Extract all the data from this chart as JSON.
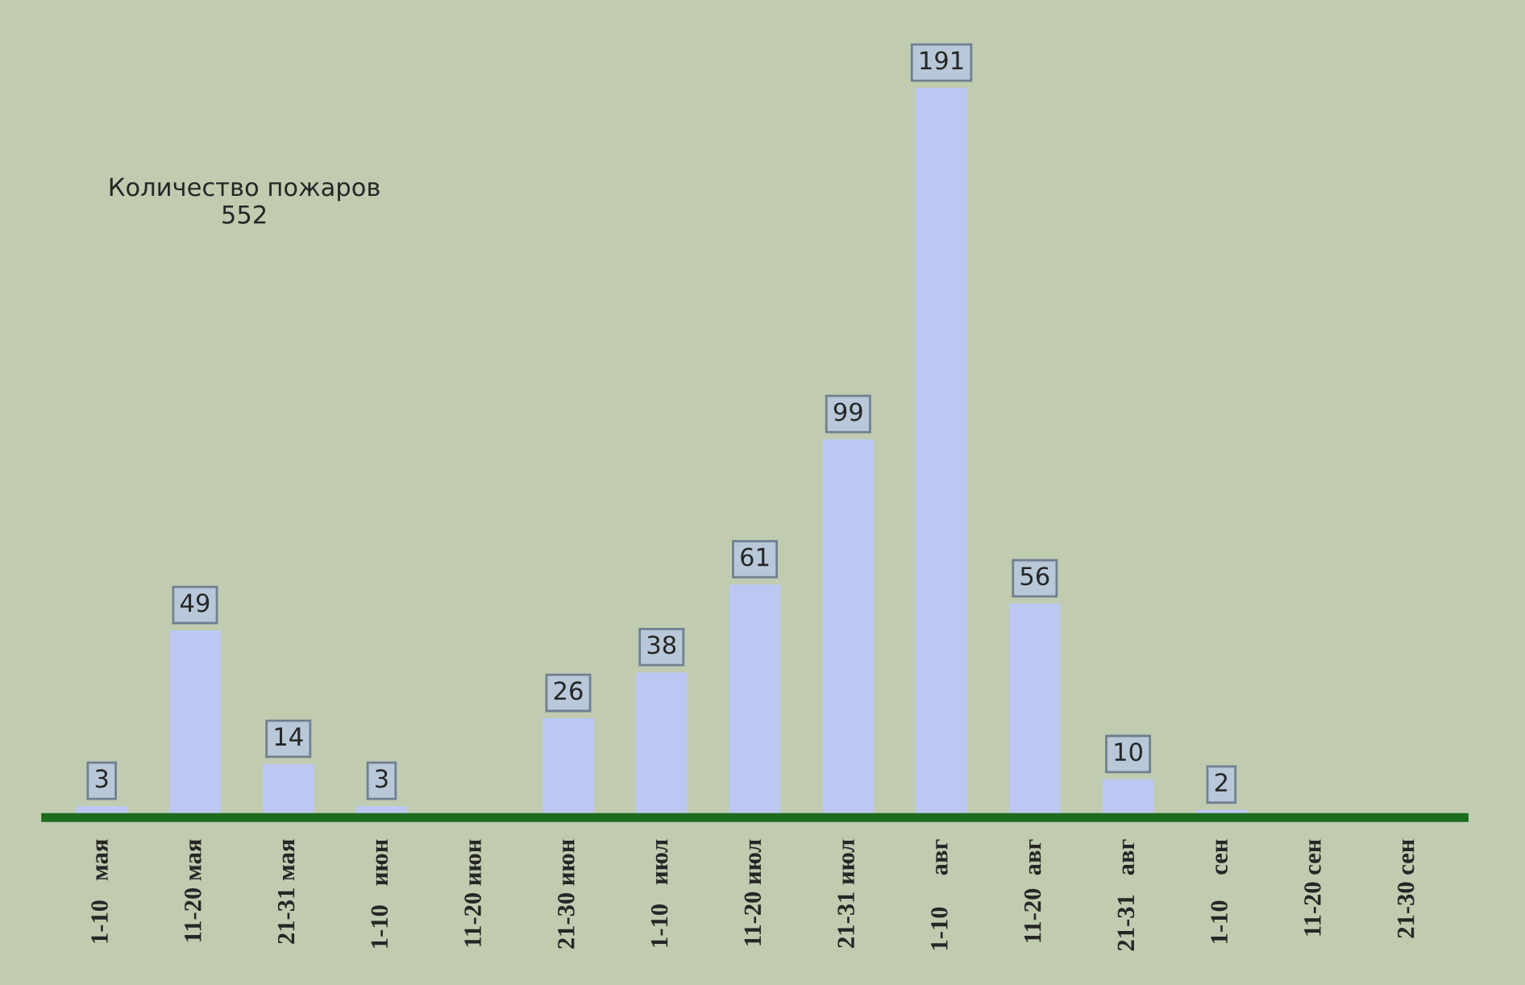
{
  "chart_data": {
    "type": "bar",
    "categories": [
      "1-10   мая",
      "11-20 мая",
      "21-31 мая",
      "1-10   июн",
      "11-20 июн",
      "21-30 июн",
      "1-10   июл",
      "11-20 июл",
      "21-31 июл",
      "1-10     авг",
      "11-20  авг",
      "21-31   авг",
      "1-10    сен",
      "11-20 сен",
      "21-30 сен"
    ],
    "values": [
      3,
      49,
      14,
      3,
      0,
      26,
      38,
      61,
      99,
      191,
      56,
      10,
      2,
      0,
      0
    ],
    "value_labels": [
      "3",
      "49",
      "14",
      "3",
      null,
      "26",
      "38",
      "61",
      "99",
      "191",
      "56",
      "10",
      "2",
      null,
      null
    ],
    "color": "#bcc8f2",
    "annotations": [
      "Количество пожаров\n552"
    ],
    "grid": false,
    "legend": false
  }
}
